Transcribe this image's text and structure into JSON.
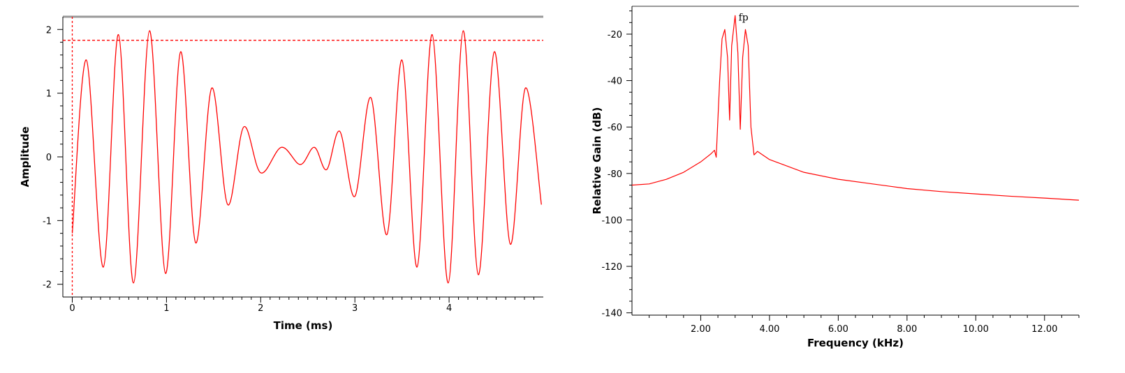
{
  "chart_data": [
    {
      "type": "line",
      "xlabel": "Time (ms)",
      "ylabel": "Amplitude",
      "xlim": [
        -0.1,
        5.0
      ],
      "ylim": [
        -2.2,
        2.2
      ],
      "xticks": [
        0,
        1,
        2,
        3,
        4
      ],
      "xtick_labels": [
        "0",
        "1",
        "2",
        "3",
        "4"
      ],
      "yticks": [
        -2,
        -1,
        0,
        1,
        2
      ],
      "ytick_labels": [
        "-2",
        "-1",
        "0",
        "1",
        "2"
      ],
      "reference_line_y": 1.83,
      "reference_line_x": 0.0,
      "grid": false,
      "colors": {
        "series": "#ff0000",
        "frame": "#999999",
        "axis": "#000000"
      },
      "series": [
        {
          "x": [
            0.0,
            0.15,
            0.33,
            0.49,
            0.65,
            0.82,
            0.99,
            1.15,
            1.31,
            1.48,
            1.65,
            1.82,
            2.0,
            2.22,
            2.42,
            2.57,
            2.7,
            2.84,
            3.0,
            3.17,
            3.34,
            3.5,
            3.66,
            3.82,
            3.99,
            4.15,
            4.31,
            4.48,
            4.65,
            4.81,
            4.98
          ],
          "y": [
            -1.2,
            1.52,
            -1.73,
            1.92,
            -1.98,
            1.98,
            -1.83,
            1.65,
            -1.35,
            1.08,
            -0.75,
            0.47,
            -0.25,
            0.15,
            -0.12,
            0.15,
            -0.2,
            0.4,
            -0.62,
            0.93,
            -1.22,
            1.52,
            -1.73,
            1.92,
            -1.98,
            1.98,
            -1.85,
            1.65,
            -1.37,
            1.08,
            -0.75
          ]
        }
      ]
    },
    {
      "type": "line",
      "xlabel": "Frequency (kHz)",
      "ylabel": "Relative Gain (dB)",
      "xlim": [
        0,
        13.0
      ],
      "ylim": [
        -141,
        -8
      ],
      "xticks": [
        2,
        4,
        6,
        8,
        10,
        12
      ],
      "xtick_labels": [
        "2.00",
        "4.00",
        "6.00",
        "8.00",
        "10.00",
        "12.00"
      ],
      "yticks": [
        -20,
        -40,
        -60,
        -80,
        -100,
        -120,
        -140
      ],
      "ytick_labels": [
        "-20",
        "-40",
        "-60",
        "-80",
        "-100",
        "-120",
        "-140"
      ],
      "annotations": [
        {
          "text": "fp",
          "x": 3.1,
          "y": -13
        }
      ],
      "grid": false,
      "colors": {
        "series": "#ff0000",
        "frame": "#999999",
        "axis": "#000000"
      },
      "series": [
        {
          "x": [
            0.0,
            0.5,
            1.0,
            1.5,
            2.0,
            2.3,
            2.4,
            2.45,
            2.55,
            2.62,
            2.7,
            2.78,
            2.84,
            2.9,
            3.0,
            3.08,
            3.15,
            3.22,
            3.3,
            3.38,
            3.46,
            3.55,
            3.65,
            4.0,
            5.0,
            6.0,
            7.0,
            8.0,
            9.0,
            10.0,
            11.0,
            12.0,
            13.0
          ],
          "y": [
            -85.0,
            -84.5,
            -82.5,
            -79.5,
            -75.0,
            -71.5,
            -70.0,
            -73.0,
            -40.0,
            -22.0,
            -18.0,
            -30.0,
            -57.0,
            -25.0,
            -12.0,
            -28.0,
            -61.0,
            -30.0,
            -18.0,
            -25.0,
            -60.0,
            -72.0,
            -70.5,
            -74.0,
            -79.5,
            -82.5,
            -84.5,
            -86.5,
            -87.8,
            -88.8,
            -89.8,
            -90.6,
            -91.5
          ]
        }
      ]
    }
  ]
}
